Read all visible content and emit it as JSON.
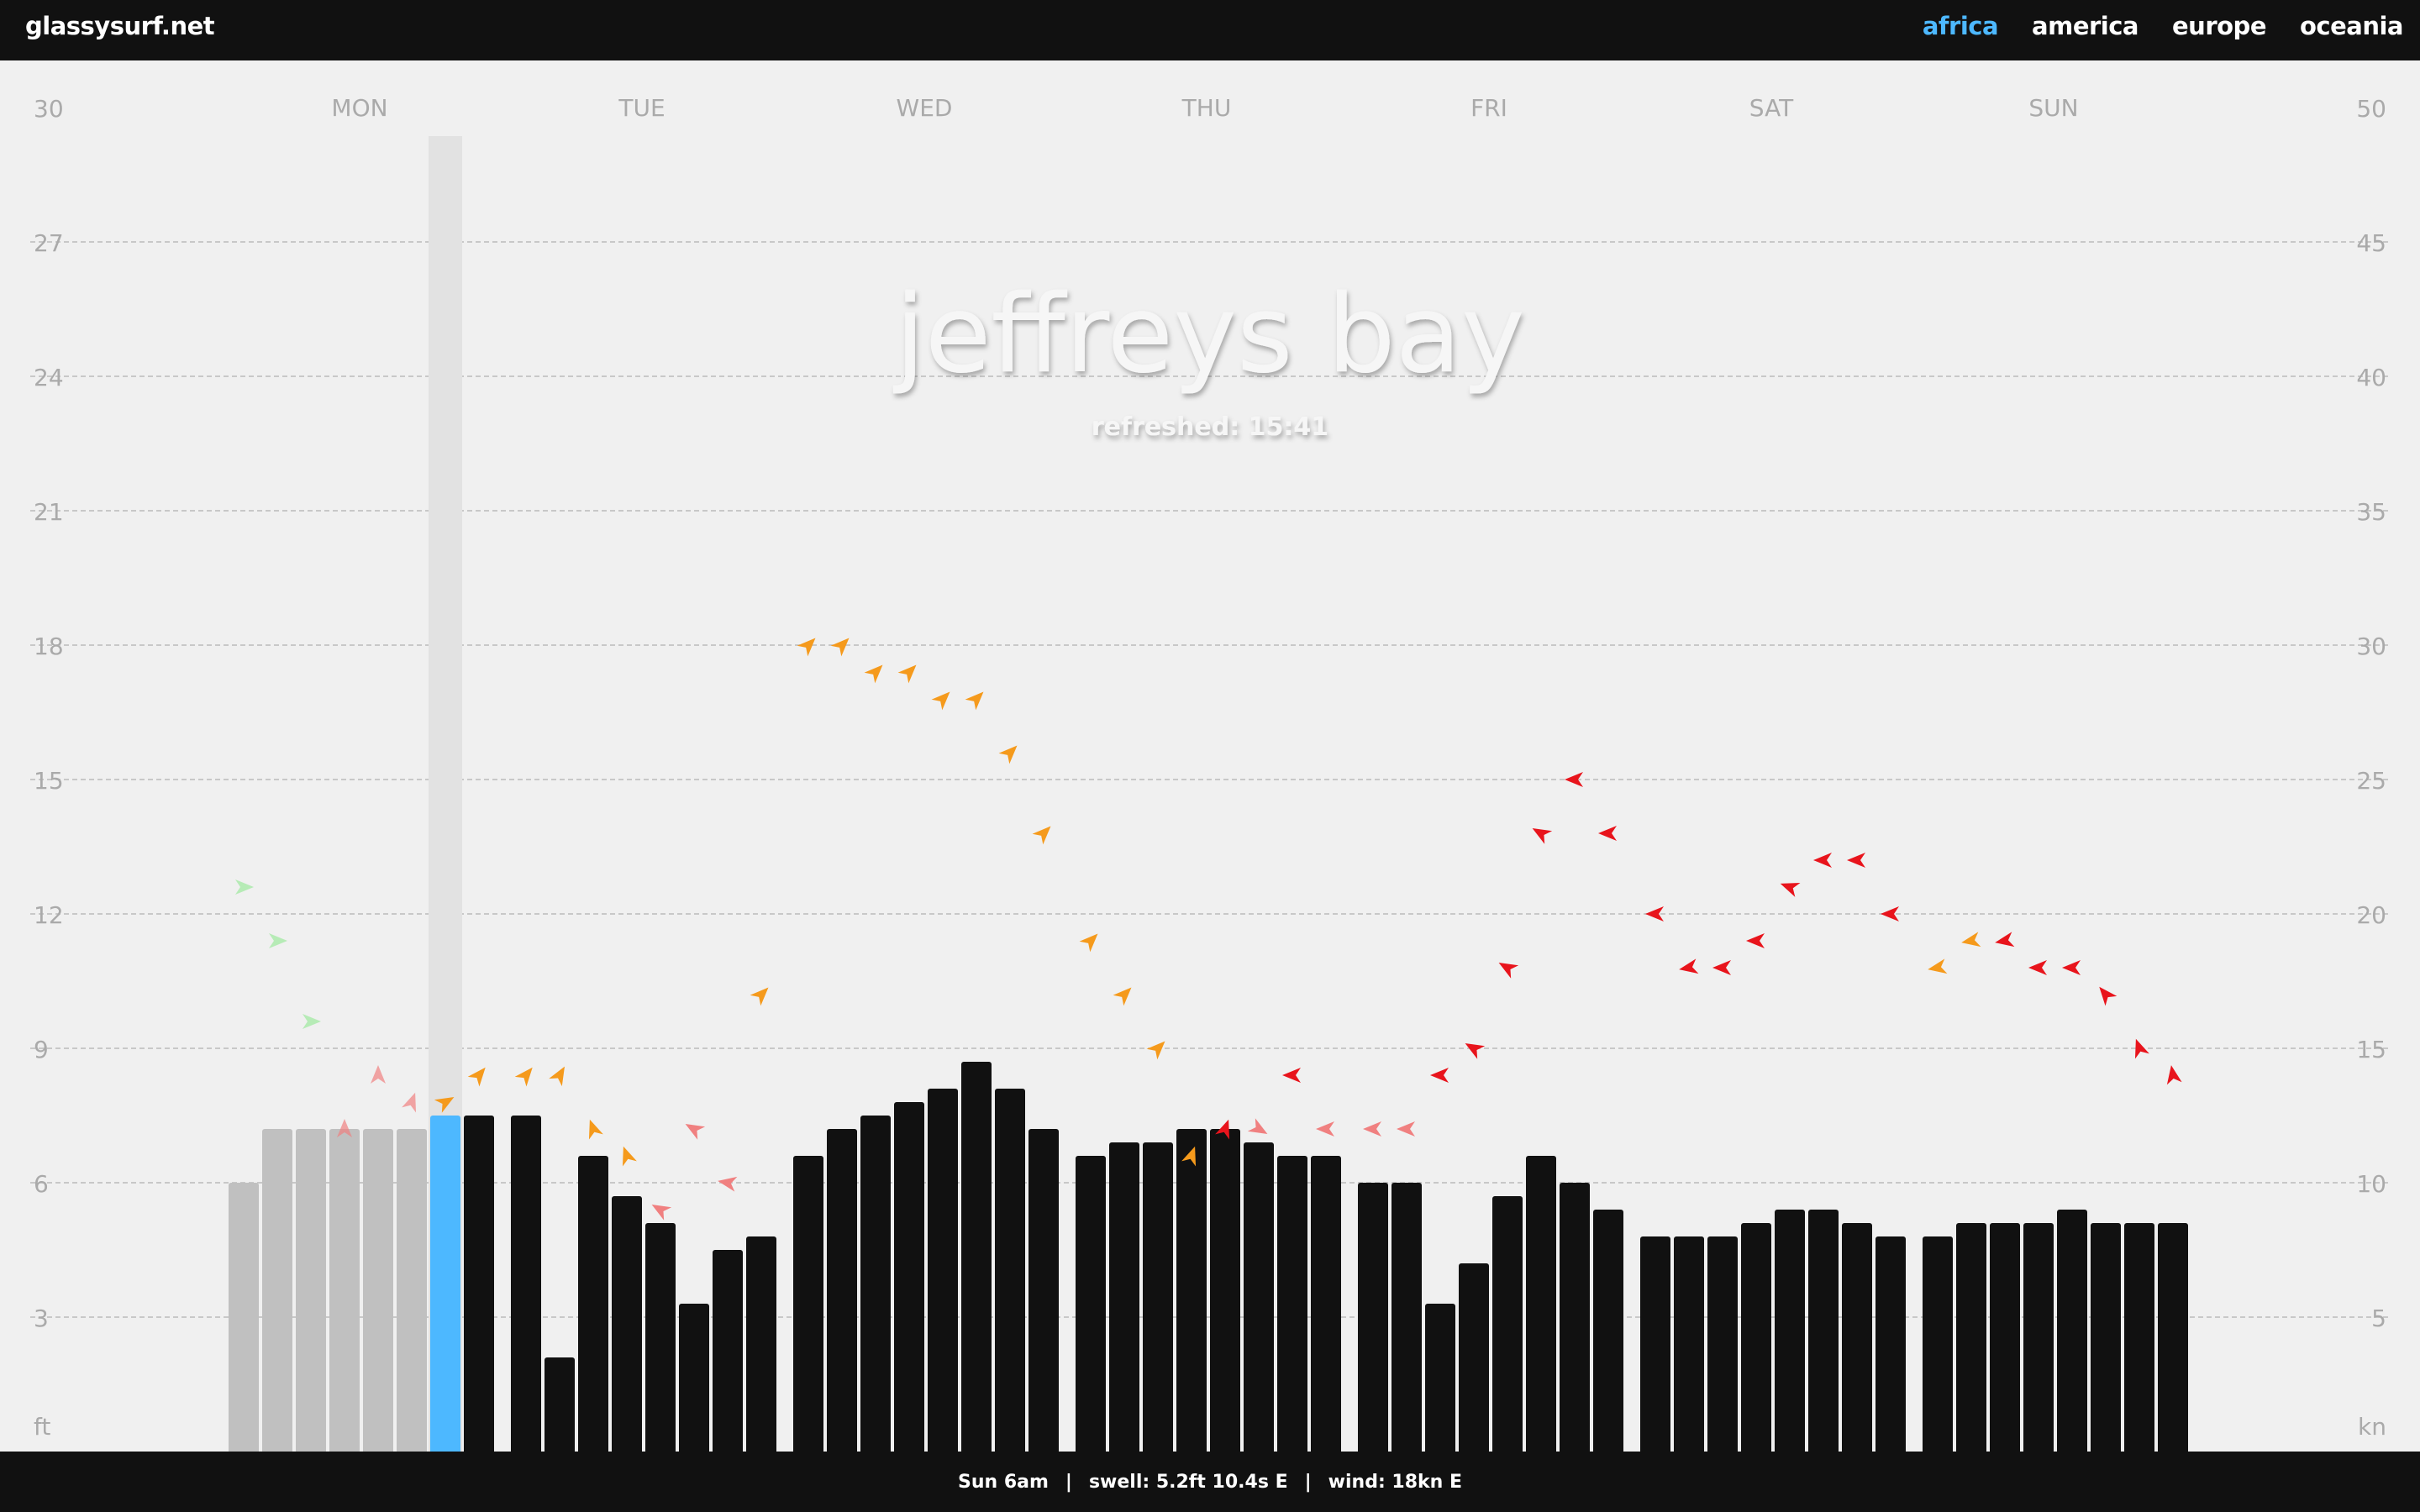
{
  "site": {
    "name": "glassysurf.net"
  },
  "nav": {
    "items": [
      {
        "label": "africa",
        "active": true
      },
      {
        "label": "america",
        "active": false
      },
      {
        "label": "europe",
        "active": false
      },
      {
        "label": "oceania",
        "active": false
      }
    ]
  },
  "status": {
    "time": "Sun 6am",
    "swell": "swell: 5.2ft 10.4s E",
    "wind": "wind: 18kn E",
    "separator": "|"
  },
  "colors": {
    "past_bar": "#c0c0c0",
    "current_bar": "#4db8ff",
    "future_bar": "#111111",
    "wind_light": "#9de89d",
    "wind_moderate": "#f59a1c",
    "wind_strong": "#e8141c",
    "wind_soft_red": "#f08080"
  },
  "chart_data": {
    "type": "bar",
    "title": "jeffreys bay",
    "subtitle": "refreshed: 15:41",
    "days": [
      "MON",
      "TUE",
      "WED",
      "THU",
      "FRI",
      "SAT",
      "SUN"
    ],
    "left_axis": {
      "unit": "ft",
      "ticks": [
        3,
        6,
        9,
        12,
        15,
        18,
        21,
        24,
        27,
        30
      ],
      "ylim": [
        0,
        30
      ]
    },
    "right_axis": {
      "unit": "kn",
      "ticks": [
        5,
        10,
        15,
        20,
        25,
        30,
        35,
        40,
        45,
        50
      ],
      "ylim": [
        0,
        50
      ]
    },
    "grid": true,
    "current_index": 6,
    "past_count": 6,
    "series": [
      {
        "name": "swell",
        "unit": "ft",
        "values": [
          6.0,
          7.2,
          7.2,
          7.2,
          7.2,
          7.2,
          7.5,
          7.5,
          7.5,
          2.1,
          6.6,
          5.7,
          5.1,
          3.3,
          4.5,
          4.8,
          6.6,
          7.2,
          7.5,
          7.8,
          8.1,
          8.7,
          8.1,
          7.2,
          6.6,
          6.9,
          6.9,
          7.2,
          7.2,
          6.9,
          6.6,
          6.6,
          6.0,
          6.0,
          3.3,
          4.2,
          5.7,
          6.6,
          6.0,
          5.4,
          4.8,
          4.8,
          4.8,
          5.1,
          5.4,
          5.4,
          5.1,
          4.8,
          4.8,
          5.1,
          5.1,
          5.1,
          5.4,
          5.1,
          5.1,
          5.1
        ]
      },
      {
        "name": "wind",
        "unit": "kn",
        "values": [
          21,
          19,
          16,
          12,
          14,
          13,
          13,
          14,
          14,
          14,
          12,
          11,
          9,
          12,
          10,
          17,
          30,
          30,
          29,
          29,
          28,
          28,
          26,
          23,
          19,
          17,
          15,
          11,
          12,
          12,
          14,
          12,
          12,
          12,
          14,
          15,
          18,
          23,
          25,
          23,
          20,
          18,
          18,
          19,
          21,
          22,
          22,
          20,
          18,
          19,
          19,
          18,
          18,
          17,
          15,
          14
        ],
        "severity": [
          "light",
          "light",
          "light",
          "soft",
          "soft",
          "soft",
          "moderate",
          "moderate",
          "moderate",
          "moderate",
          "moderate",
          "moderate",
          "soft",
          "soft",
          "soft",
          "moderate",
          "moderate",
          "moderate",
          "moderate",
          "moderate",
          "moderate",
          "moderate",
          "moderate",
          "moderate",
          "moderate",
          "moderate",
          "moderate",
          "moderate",
          "strong",
          "soft",
          "strong",
          "soft",
          "soft",
          "soft",
          "strong",
          "strong",
          "strong",
          "strong",
          "strong",
          "strong",
          "strong",
          "strong",
          "strong",
          "strong",
          "strong",
          "strong",
          "strong",
          "strong",
          "moderate",
          "moderate",
          "strong",
          "strong",
          "strong",
          "strong",
          "strong",
          "strong"
        ],
        "direction_deg": [
          270,
          270,
          270,
          180,
          180,
          200,
          240,
          220,
          220,
          210,
          160,
          160,
          120,
          120,
          100,
          225,
          225,
          225,
          225,
          225,
          225,
          225,
          225,
          225,
          225,
          225,
          225,
          200,
          200,
          300,
          90,
          90,
          90,
          90,
          90,
          120,
          120,
          120,
          90,
          90,
          90,
          80,
          90,
          90,
          110,
          90,
          90,
          90,
          80,
          80,
          80,
          90,
          90,
          140,
          160,
          170
        ]
      }
    ]
  }
}
